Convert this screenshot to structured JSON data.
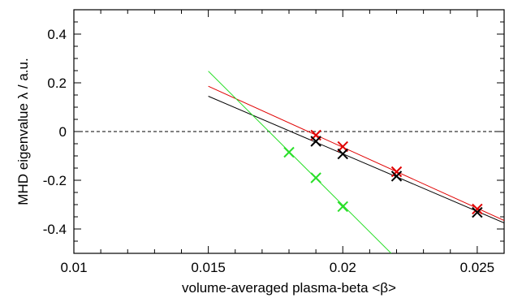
{
  "chart_data": {
    "type": "scatter",
    "title": "",
    "xlabel": "volume-averaged plasma-beta <β>",
    "ylabel": "MHD eigenvalue   λ / a.u.",
    "xlim": [
      0.01,
      0.026
    ],
    "ylim": [
      -0.5,
      0.5
    ],
    "x_ticks": [
      0.01,
      0.015,
      0.02,
      0.025
    ],
    "x_tick_labels": [
      "0.01",
      "0.015",
      "0.02",
      "0.025"
    ],
    "y_ticks": [
      -0.4,
      -0.2,
      0,
      0.2,
      0.4
    ],
    "y_tick_labels": [
      "-0.4",
      "-0.2",
      "0",
      "0.2",
      "0.4"
    ],
    "grid": false,
    "legend": "none",
    "zero_line": {
      "y": 0,
      "style": "dashed",
      "color": "#000000"
    },
    "series": [
      {
        "color": "#e00000",
        "marker": "x",
        "points": [
          [
            0.019,
            -0.015
          ],
          [
            0.02,
            -0.062
          ],
          [
            0.022,
            -0.165
          ],
          [
            0.025,
            -0.318
          ]
        ],
        "fit_line": [
          [
            0.015,
            0.186
          ],
          [
            0.026,
            -0.365
          ]
        ]
      },
      {
        "color": "#000000",
        "marker": "x",
        "points": [
          [
            0.019,
            -0.04
          ],
          [
            0.02,
            -0.092
          ],
          [
            0.022,
            -0.183
          ],
          [
            0.025,
            -0.332
          ]
        ],
        "fit_line": [
          [
            0.015,
            0.145
          ],
          [
            0.026,
            -0.375
          ]
        ]
      },
      {
        "color": "#2adf2a",
        "marker": "x",
        "points": [
          [
            0.018,
            -0.085
          ],
          [
            0.019,
            -0.19
          ],
          [
            0.02,
            -0.308
          ]
        ],
        "fit_line": [
          [
            0.015,
            0.248
          ],
          [
            0.0218,
            -0.5
          ]
        ]
      }
    ]
  }
}
